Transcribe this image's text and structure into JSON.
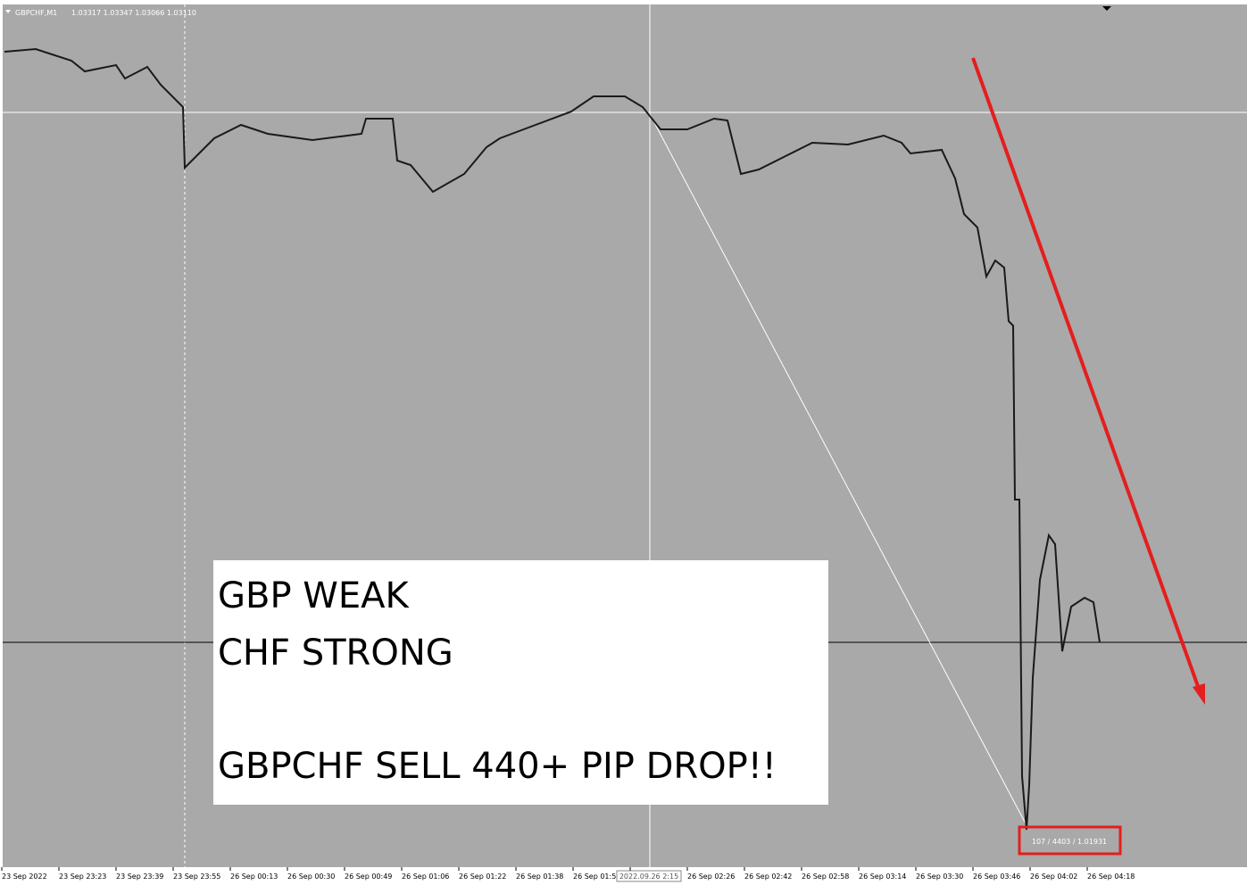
{
  "header": {
    "symbol": "GBPCHF,M1",
    "quote": "1.03317 1.03347 1.03066 1.03110"
  },
  "time_axis": {
    "labels": [
      "23 Sep 2022",
      "23 Sep 23:23",
      "23 Sep 23:39",
      "23 Sep 23:55",
      "26 Sep 00:13",
      "26 Sep 00:30",
      "26 Sep 00:49",
      "26 Sep 01:06",
      "26 Sep 01:22",
      "26 Sep 01:38",
      "26 Sep 01:5",
      "",
      "26 Sep 02:26",
      "26 Sep 02:42",
      "26 Sep 02:58",
      "26 Sep 03:14",
      "26 Sep 03:30",
      "26 Sep 03:46",
      "26 Sep 04:02",
      "26 Sep 04:18"
    ],
    "cursor_time": "2022.09.26 2:15"
  },
  "measure_label": "107 / 4403 / 1.01931",
  "note": {
    "lines": [
      "GBP WEAK",
      "CHF STRONG",
      "GBPCHF SELL 440+ PIP DROP!!"
    ]
  }
}
